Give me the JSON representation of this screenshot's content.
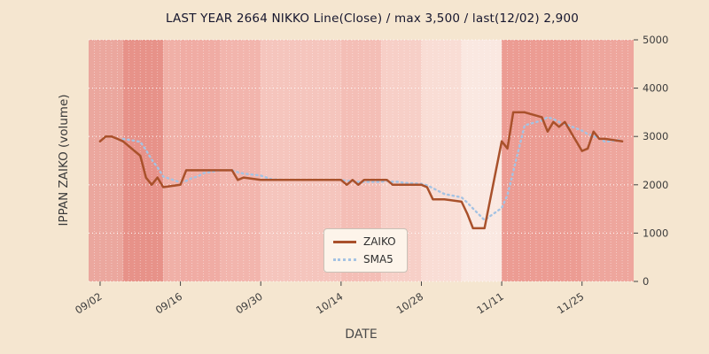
{
  "figure": {
    "title": "LAST YEAR 2664 NIKKO Line(Close) / max 3,500 / last(12/02) 2,900",
    "background_color": "#f5e6d0"
  },
  "chart_data": {
    "type": "line",
    "title": "LAST YEAR 2664 NIKKO Line(Close) / max 3,500 / last(12/02) 2,900",
    "xlabel": "DATE",
    "ylabel": "IPPAN ZAIKO (volume)",
    "ylim": [
      0,
      5000
    ],
    "yticks": [
      0,
      1000,
      2000,
      3000,
      4000,
      5000
    ],
    "xticks": [
      "09/02",
      "09/16",
      "09/30",
      "10/14",
      "10/28",
      "11/11",
      "11/25"
    ],
    "max_value": 3500,
    "last_date": "12/02",
    "last_value": 2900,
    "grid": true,
    "colors": {
      "zaiko_line": "#a9512b",
      "sma5_line": "#a5c3e3",
      "plot_bg": "#fbece6",
      "grid_line": "#ffffff",
      "tick_text": "#3c3c3c"
    },
    "legend": {
      "position": "lower center",
      "entries": [
        {
          "label": "ZAIKO",
          "color": "#a9512b",
          "style": "solid"
        },
        {
          "label": "SMA5",
          "color": "#a5c3e3",
          "style": "dotted"
        }
      ]
    },
    "dates": [
      "09/02",
      "09/03",
      "09/04",
      "09/05",
      "09/06",
      "09/09",
      "09/10",
      "09/11",
      "09/12",
      "09/13",
      "09/16",
      "09/17",
      "09/18",
      "09/19",
      "09/20",
      "09/23",
      "09/24",
      "09/25",
      "09/26",
      "09/27",
      "09/30",
      "10/01",
      "10/02",
      "10/03",
      "10/04",
      "10/07",
      "10/08",
      "10/09",
      "10/10",
      "10/11",
      "10/14",
      "10/15",
      "10/16",
      "10/17",
      "10/18",
      "10/21",
      "10/22",
      "10/23",
      "10/24",
      "10/25",
      "10/28",
      "10/29",
      "10/30",
      "10/31",
      "11/01",
      "11/04",
      "11/05",
      "11/06",
      "11/07",
      "11/08",
      "11/11",
      "11/12",
      "11/13",
      "11/14",
      "11/15",
      "11/18",
      "11/19",
      "11/20",
      "11/21",
      "11/22",
      "11/25",
      "11/26",
      "11/27",
      "11/28",
      "11/29",
      "12/02"
    ],
    "series": [
      {
        "name": "ZAIKO",
        "values": [
          2900,
          3000,
          3000,
          2950,
          2900,
          2600,
          2150,
          2000,
          2150,
          1950,
          2000,
          2300,
          2300,
          2300,
          2300,
          2300,
          2300,
          2300,
          2100,
          2150,
          2100,
          2100,
          2100,
          2100,
          2100,
          2100,
          2100,
          2100,
          2100,
          2100,
          2100,
          2000,
          2100,
          2000,
          2100,
          2100,
          2100,
          2000,
          2000,
          2000,
          2000,
          1950,
          1700,
          1700,
          1700,
          1650,
          1400,
          1100,
          1100,
          1100,
          2900,
          2750,
          3500,
          3500,
          3500,
          3400,
          3100,
          3300,
          3200,
          3300,
          2700,
          2750,
          3100,
          2950,
          2950,
          2900
        ]
      },
      {
        "name": "SMA5",
        "derivation": "5-point moving average of ZAIKO"
      }
    ],
    "bands": [
      {
        "from": "09/02",
        "to": "09/06",
        "color": "#eba79e"
      },
      {
        "from": "09/06",
        "to": "09/13",
        "color": "#e79289"
      },
      {
        "from": "09/13",
        "to": "09/16",
        "color": "#f0b0a7"
      },
      {
        "from": "09/16",
        "to": "09/23",
        "color": "#f0aca4"
      },
      {
        "from": "09/23",
        "to": "09/30",
        "color": "#f2b5ad"
      },
      {
        "from": "09/30",
        "to": "10/14",
        "color": "#f5c5bd"
      },
      {
        "from": "10/14",
        "to": "10/21",
        "color": "#f4beb6"
      },
      {
        "from": "10/21",
        "to": "10/28",
        "color": "#f7cfc7"
      },
      {
        "from": "10/28",
        "to": "11/04",
        "color": "#f9ddd5"
      },
      {
        "from": "11/04",
        "to": "11/11",
        "color": "#fae8e1"
      },
      {
        "from": "11/11",
        "to": "11/25",
        "color": "#ec9c93"
      },
      {
        "from": "11/25",
        "to": "12/02",
        "color": "#eea69d"
      }
    ]
  }
}
